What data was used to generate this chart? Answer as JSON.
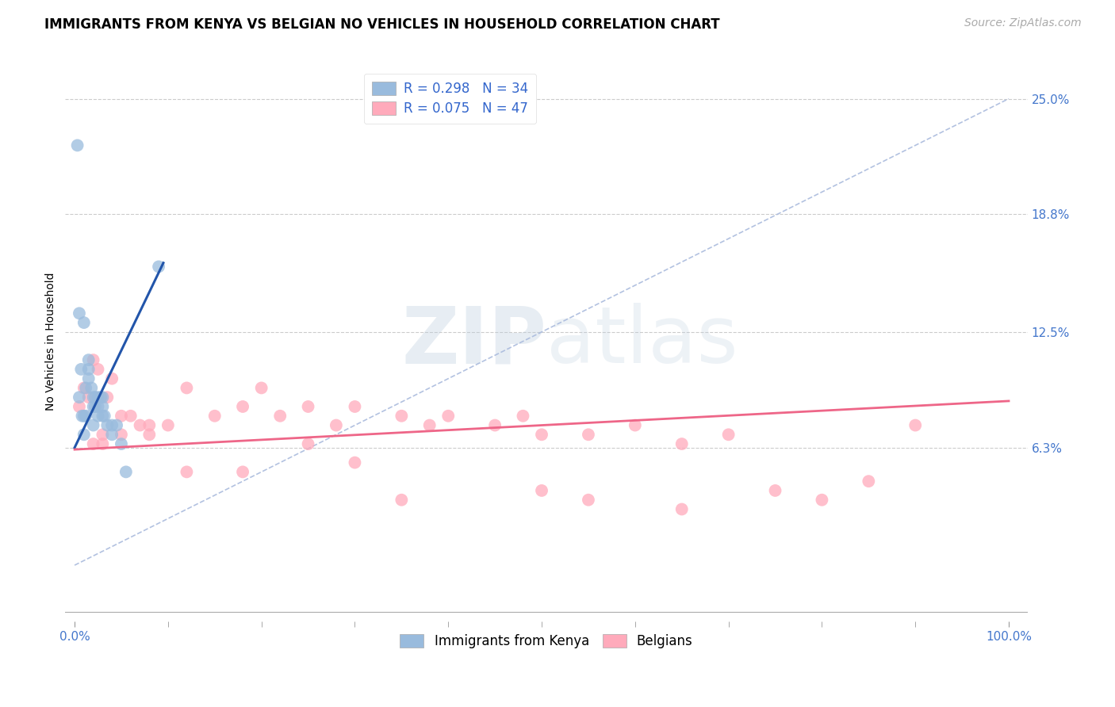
{
  "title": "IMMIGRANTS FROM KENYA VS BELGIAN NO VEHICLES IN HOUSEHOLD CORRELATION CHART",
  "source": "Source: ZipAtlas.com",
  "ylabel": "No Vehicles in Household",
  "legend_label1": "Immigrants from Kenya",
  "legend_label2": "Belgians",
  "r1": 0.298,
  "n1": 34,
  "r2": 0.075,
  "n2": 47,
  "xlim": [
    -1.0,
    102.0
  ],
  "ylim": [
    -3.0,
    27.0
  ],
  "ytick_vals": [
    6.3,
    12.5,
    18.8,
    25.0
  ],
  "ytick_labels": [
    "6.3%",
    "12.5%",
    "18.8%",
    "25.0%"
  ],
  "xtick_edge_vals": [
    0.0,
    100.0
  ],
  "xtick_edge_labels": [
    "0.0%",
    "100.0%"
  ],
  "xtick_minor_vals": [
    10,
    20,
    30,
    40,
    50,
    60,
    70,
    80,
    90
  ],
  "color_blue": "#99BBDD",
  "color_pink": "#FFAABB",
  "color_line_blue": "#2255AA",
  "color_line_pink": "#EE6688",
  "color_dash": "#AABBDD",
  "color_grid": "#CCCCCC",
  "watermark_color": "#DDEEFF",
  "title_fontsize": 12,
  "axis_label_fontsize": 10,
  "tick_label_fontsize": 11,
  "legend_fontsize": 12,
  "blue_scatter_x": [
    0.3,
    0.5,
    0.7,
    1.0,
    1.2,
    1.5,
    1.5,
    1.8,
    2.0,
    2.0,
    2.2,
    2.5,
    2.5,
    2.8,
    3.0,
    3.0,
    3.2,
    3.5,
    4.0,
    4.5,
    5.0,
    5.5,
    0.5,
    1.0,
    1.5,
    2.0,
    0.8,
    1.2,
    2.5,
    3.0,
    4.0,
    1.0,
    2.2,
    9.0
  ],
  "blue_scatter_y": [
    22.5,
    13.5,
    10.5,
    13.0,
    9.5,
    11.0,
    10.0,
    9.5,
    9.0,
    8.5,
    8.5,
    9.0,
    8.0,
    9.0,
    8.5,
    8.0,
    8.0,
    7.5,
    7.0,
    7.5,
    6.5,
    5.0,
    9.0,
    8.0,
    10.5,
    7.5,
    8.0,
    8.0,
    8.5,
    9.0,
    7.5,
    7.0,
    9.0,
    16.0
  ],
  "pink_scatter_x": [
    0.5,
    1.0,
    1.5,
    2.0,
    2.5,
    3.0,
    3.5,
    4.0,
    5.0,
    6.0,
    7.0,
    8.0,
    10.0,
    12.0,
    15.0,
    18.0,
    20.0,
    22.0,
    25.0,
    28.0,
    30.0,
    35.0,
    38.0,
    40.0,
    45.0,
    48.0,
    50.0,
    55.0,
    60.0,
    65.0,
    70.0,
    2.0,
    3.0,
    5.0,
    8.0,
    12.0,
    18.0,
    25.0,
    35.0,
    55.0,
    75.0,
    85.0,
    90.0,
    30.0,
    50.0,
    65.0,
    80.0
  ],
  "pink_scatter_y": [
    8.5,
    9.5,
    9.0,
    11.0,
    10.5,
    7.0,
    9.0,
    10.0,
    8.0,
    8.0,
    7.5,
    7.5,
    7.5,
    9.5,
    8.0,
    8.5,
    9.5,
    8.0,
    8.5,
    7.5,
    8.5,
    8.0,
    7.5,
    8.0,
    7.5,
    8.0,
    7.0,
    7.0,
    7.5,
    6.5,
    7.0,
    6.5,
    6.5,
    7.0,
    7.0,
    5.0,
    5.0,
    6.5,
    3.5,
    3.5,
    4.0,
    4.5,
    7.5,
    5.5,
    4.0,
    3.0,
    3.5
  ],
  "blue_line_x": [
    0.0,
    9.5
  ],
  "blue_line_y": [
    6.3,
    16.2
  ],
  "pink_line_x": [
    0.0,
    100.0
  ],
  "pink_line_y": [
    6.2,
    8.8
  ],
  "dash_line_x": [
    0.0,
    100.0
  ],
  "dash_line_y": [
    0.0,
    25.0
  ]
}
